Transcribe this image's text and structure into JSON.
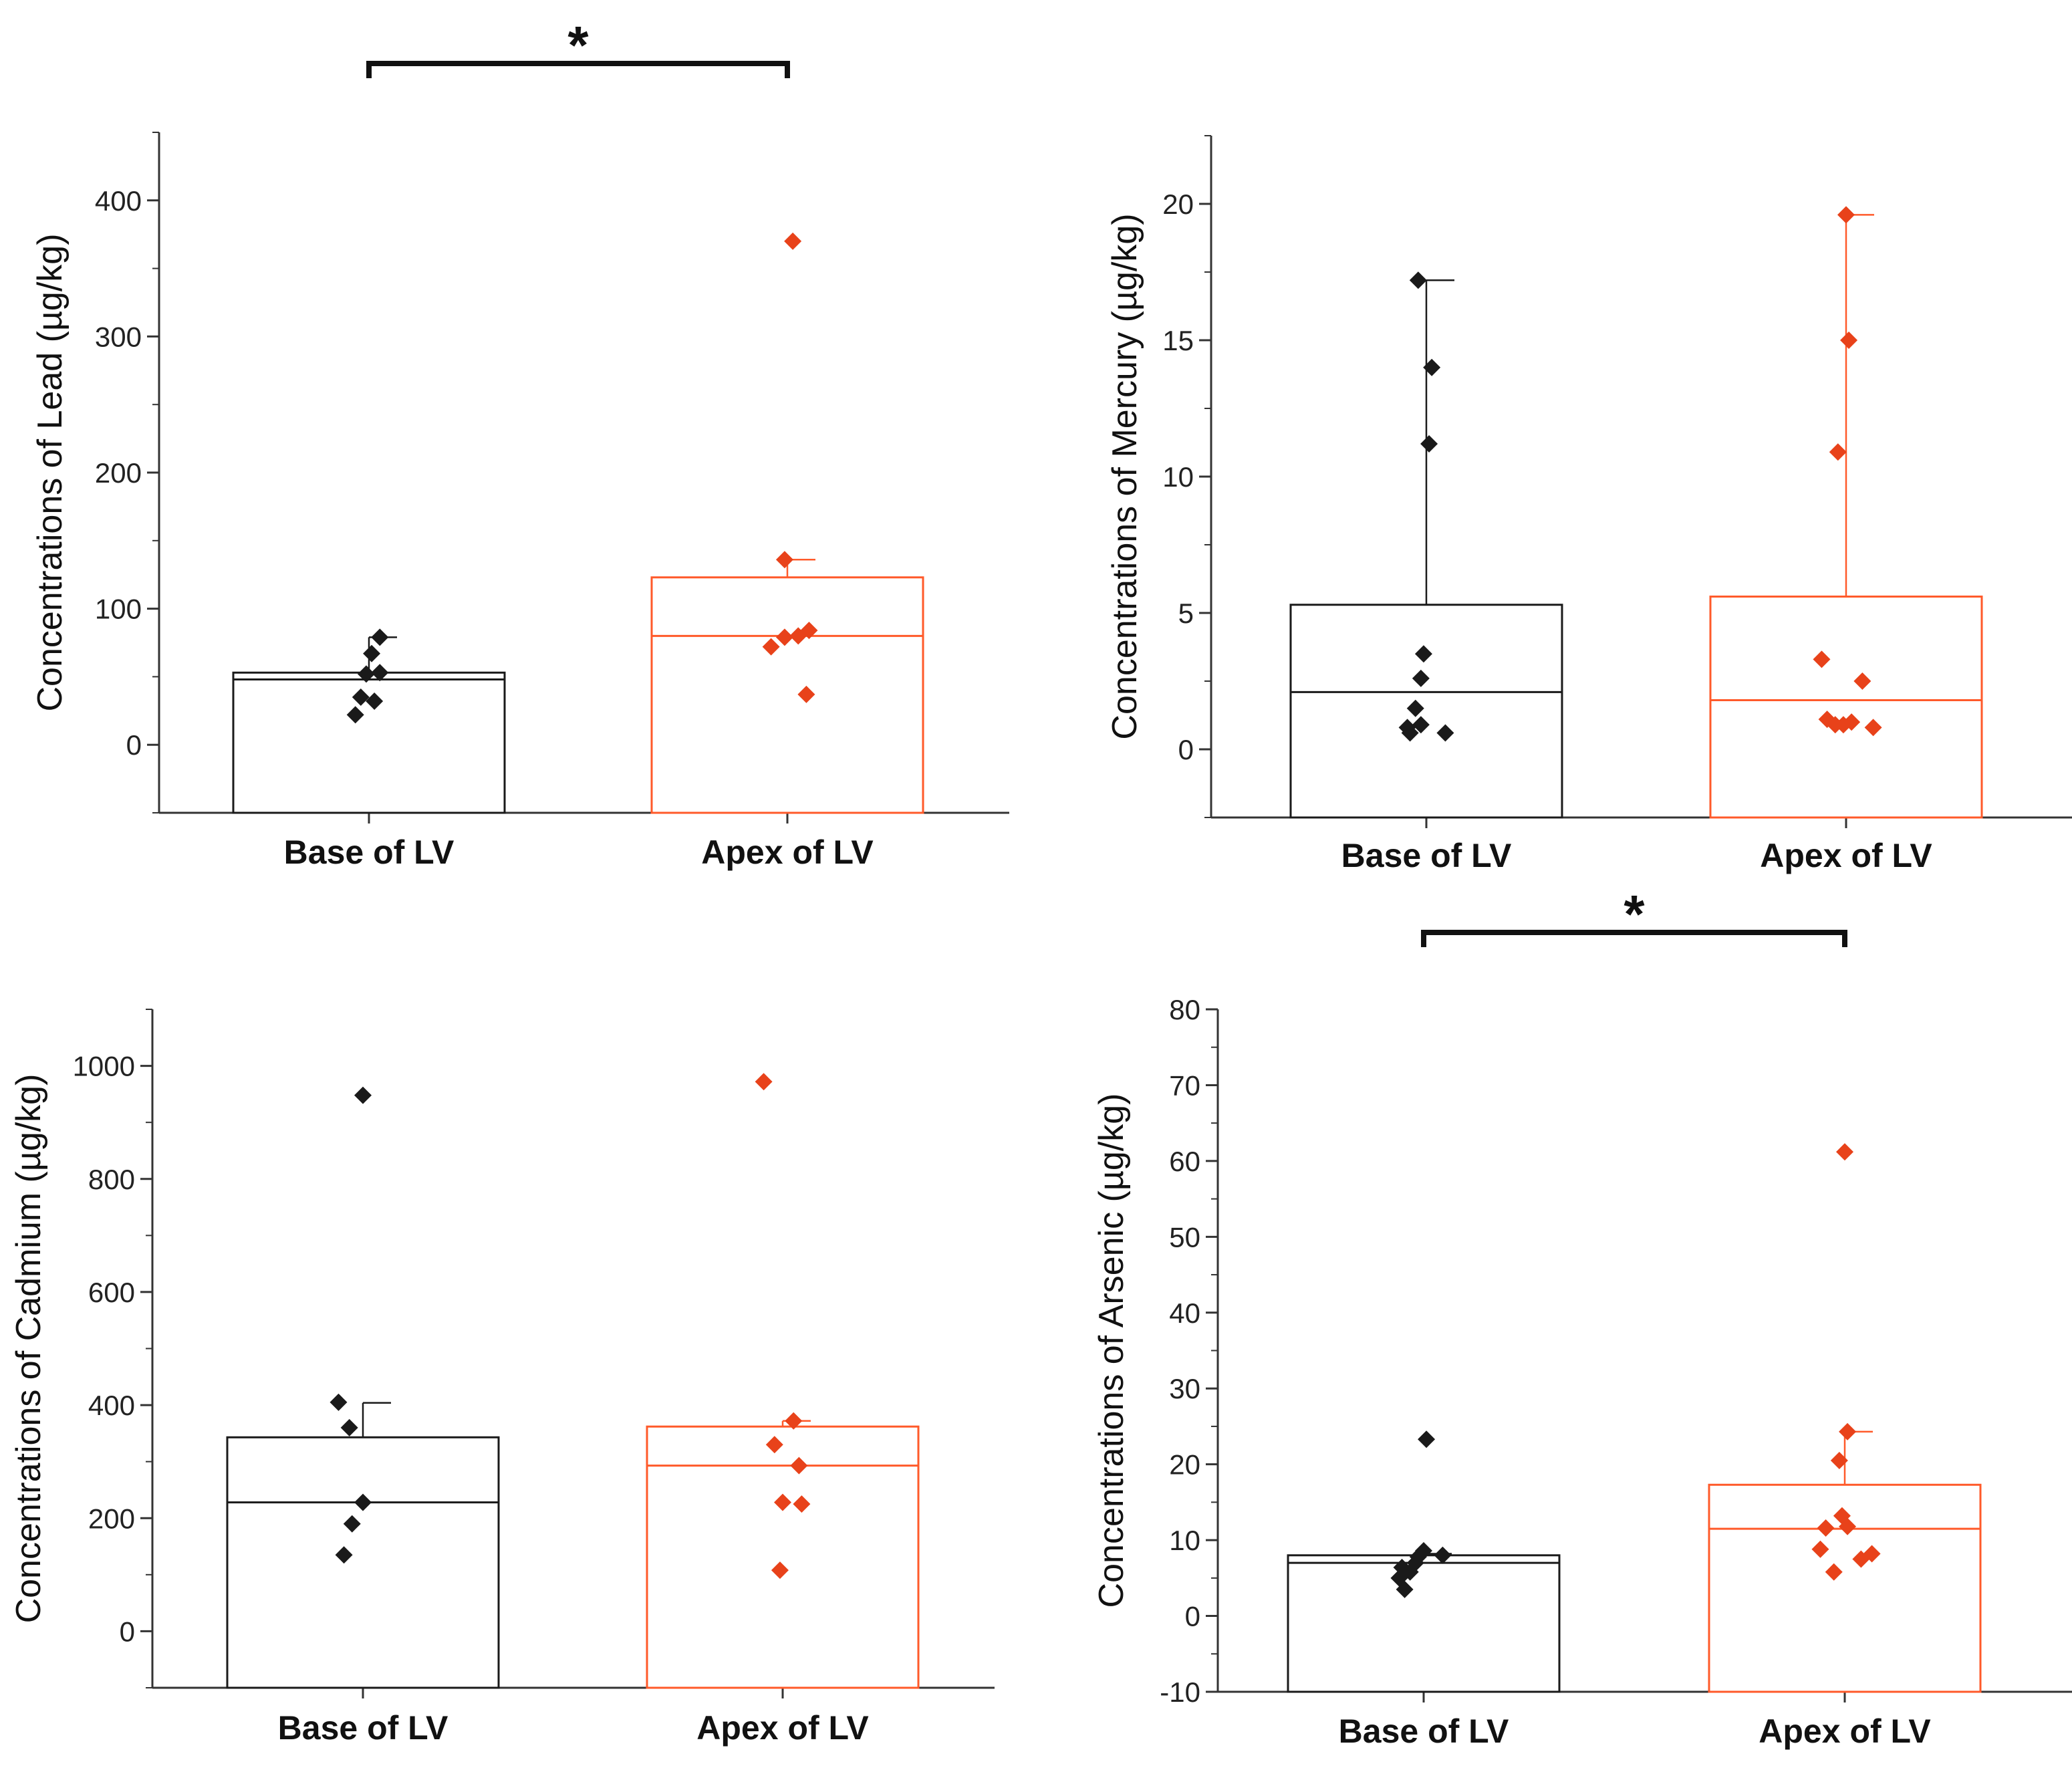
{
  "chart_data": [
    {
      "type": "box",
      "ylabel": "Concentrations of Lead (µg/kg)",
      "ylim": [
        -50,
        450
      ],
      "yticks": [
        0,
        100,
        200,
        300,
        400
      ],
      "ytick_labels": [
        "0",
        "100",
        "200",
        "300",
        "400"
      ],
      "minor_step": 50,
      "categories": [
        "Base of LV",
        "Apex of LV"
      ],
      "significance": "*",
      "series": [
        {
          "box": [
            -50,
            53
          ],
          "median": 48,
          "whisker": 79,
          "color": "#1a1a1a",
          "points": [
            [
              -0.05,
              22
            ],
            [
              0.02,
              32
            ],
            [
              -0.03,
              35
            ],
            [
              -0.01,
              52
            ],
            [
              0.04,
              53
            ],
            [
              0.01,
              67
            ],
            [
              0.04,
              79
            ]
          ]
        },
        {
          "box": [
            -50,
            123
          ],
          "median": 80,
          "whisker": 136,
          "color": "#ff5a2a",
          "point_color": "#e8421a",
          "points": [
            [
              -0.06,
              72
            ],
            [
              -0.01,
              79
            ],
            [
              0.04,
              80
            ],
            [
              0.08,
              84
            ],
            [
              0.07,
              37
            ],
            [
              -0.01,
              136
            ],
            [
              0.02,
              370
            ]
          ]
        }
      ]
    },
    {
      "type": "box",
      "ylabel": "Concentrations of Mercury (µg/kg)",
      "ylim": [
        -2.5,
        22.5
      ],
      "yticks": [
        0,
        5,
        10,
        15,
        20
      ],
      "ytick_labels": [
        "0",
        "5",
        "10",
        "15",
        "20"
      ],
      "minor_step": 2.5,
      "categories": [
        "Base of LV",
        "Apex of LV"
      ],
      "series": [
        {
          "box": [
            -2.5,
            5.3
          ],
          "median": 2.1,
          "whisker": 17.2,
          "color": "#1a1a1a",
          "points": [
            [
              -0.06,
              0.6
            ],
            [
              -0.07,
              0.8
            ],
            [
              -0.04,
              1.5
            ],
            [
              -0.02,
              0.9
            ],
            [
              0.07,
              0.6
            ],
            [
              -0.02,
              2.6
            ],
            [
              -0.01,
              3.5
            ],
            [
              0.01,
              11.2
            ],
            [
              0.02,
              14.0
            ],
            [
              -0.03,
              17.2
            ]
          ]
        },
        {
          "box": [
            -2.5,
            5.6
          ],
          "median": 1.8,
          "whisker": 19.6,
          "color": "#ff5a2a",
          "point_color": "#e8421a",
          "points": [
            [
              -0.09,
              3.3
            ],
            [
              -0.07,
              1.1
            ],
            [
              -0.04,
              0.9
            ],
            [
              -0.01,
              0.9
            ],
            [
              0.02,
              1.0
            ],
            [
              0.06,
              2.5
            ],
            [
              0.1,
              0.8
            ],
            [
              -0.03,
              10.9
            ],
            [
              0.01,
              15.0
            ],
            [
              0.0,
              19.6
            ]
          ]
        }
      ]
    },
    {
      "type": "box",
      "ylabel": "Concentrations of Cadmium (µg/kg)",
      "ylim": [
        -100,
        1100
      ],
      "yticks": [
        0,
        200,
        400,
        600,
        800,
        1000
      ],
      "ytick_labels": [
        "0",
        "200",
        "400",
        "600",
        "800",
        "1000"
      ],
      "minor_step": 100,
      "categories": [
        "Base of LV",
        "Apex of LV"
      ],
      "series": [
        {
          "box": [
            -100,
            343
          ],
          "median": 228,
          "whisker": 404,
          "color": "#1a1a1a",
          "points": [
            [
              -0.07,
              135
            ],
            [
              -0.04,
              190
            ],
            [
              0.0,
              228
            ],
            [
              -0.05,
              360
            ],
            [
              -0.09,
              405
            ],
            [
              0.0,
              948
            ]
          ]
        },
        {
          "box": [
            -100,
            362
          ],
          "median": 293,
          "whisker": 372,
          "color": "#ff5a2a",
          "point_color": "#e8421a",
          "points": [
            [
              -0.01,
              108
            ],
            [
              0.0,
              228
            ],
            [
              0.07,
              225
            ],
            [
              0.06,
              293
            ],
            [
              -0.03,
              330
            ],
            [
              0.04,
              372
            ],
            [
              -0.07,
              972
            ]
          ]
        }
      ]
    },
    {
      "type": "box",
      "ylabel": "Concentrations of Arsenic (µg/kg)",
      "ylim": [
        -10,
        80
      ],
      "yticks": [
        -10,
        0,
        10,
        20,
        30,
        40,
        50,
        60,
        70,
        80
      ],
      "ytick_labels": [
        "-10",
        "0",
        "10",
        "20",
        "30",
        "40",
        "50",
        "60",
        "70",
        "80"
      ],
      "minor_step": 5,
      "categories": [
        "Base of LV",
        "Apex of LV"
      ],
      "significance": "*",
      "series": [
        {
          "box": [
            -10,
            8.0
          ],
          "median": 7.0,
          "whisker": 8.2,
          "color": "#1a1a1a",
          "points": [
            [
              -0.07,
              3.5
            ],
            [
              -0.09,
              5.0
            ],
            [
              -0.05,
              5.8
            ],
            [
              -0.08,
              6.4
            ],
            [
              -0.03,
              7.0
            ],
            [
              -0.02,
              7.8
            ],
            [
              0.0,
              8.6
            ],
            [
              0.07,
              8.0
            ],
            [
              0.01,
              23.3
            ]
          ]
        },
        {
          "box": [
            -10,
            17.3
          ],
          "median": 11.5,
          "whisker": 24.3,
          "color": "#ff5a2a",
          "point_color": "#e8421a",
          "points": [
            [
              -0.09,
              8.8
            ],
            [
              -0.07,
              11.6
            ],
            [
              -0.04,
              5.8
            ],
            [
              -0.01,
              13.2
            ],
            [
              0.01,
              11.8
            ],
            [
              0.06,
              7.5
            ],
            [
              0.1,
              8.2
            ],
            [
              -0.02,
              20.5
            ],
            [
              0.01,
              24.3
            ],
            [
              0.0,
              61.2
            ]
          ]
        }
      ]
    }
  ]
}
